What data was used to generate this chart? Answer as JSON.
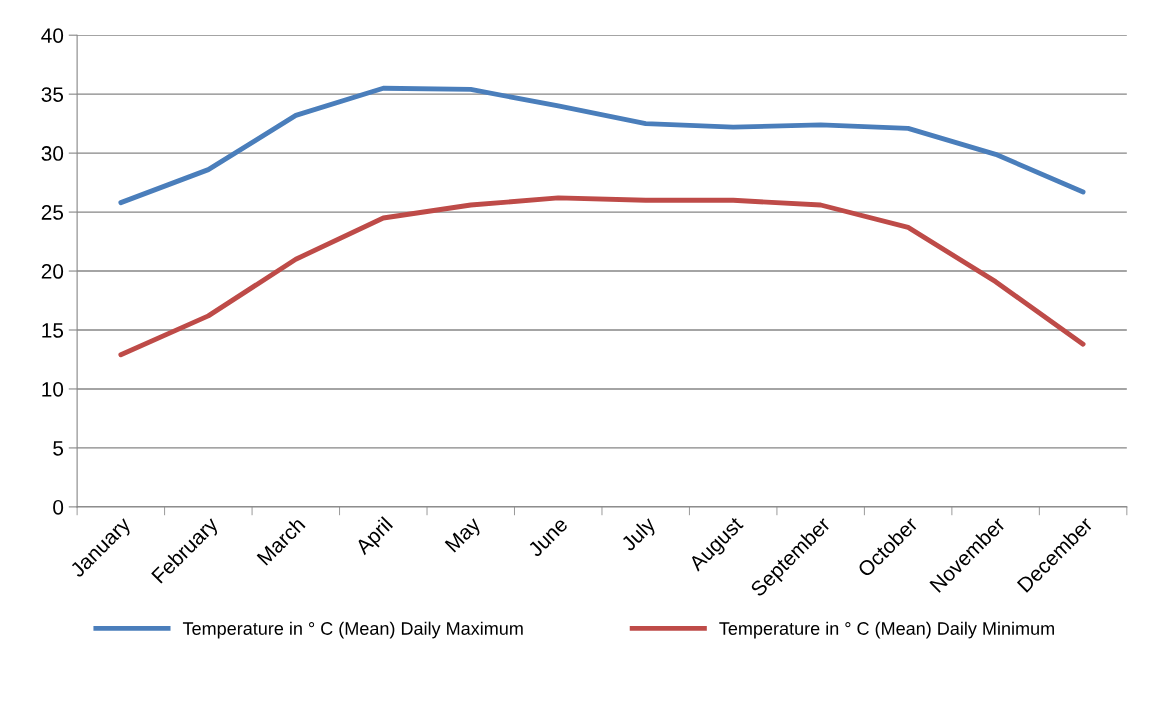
{
  "chart_data": {
    "type": "line",
    "categories": [
      "January",
      "February",
      "March",
      "April",
      "May",
      "June",
      "July",
      "August",
      "September",
      "October",
      "November",
      "December"
    ],
    "series": [
      {
        "name": "Temperature in ° C (Mean) Daily Maximum",
        "color": "#4a7ebb",
        "values": [
          25.8,
          28.6,
          33.2,
          35.5,
          35.4,
          34.0,
          32.5,
          32.2,
          32.4,
          32.1,
          29.9,
          26.7
        ]
      },
      {
        "name": "Temperature in ° C (Mean) Daily Minimum",
        "color": "#be4b48",
        "values": [
          12.9,
          16.2,
          21.0,
          24.5,
          25.6,
          26.2,
          26.0,
          26.0,
          25.6,
          23.7,
          19.1,
          13.8
        ]
      }
    ],
    "ylim": [
      0,
      40
    ],
    "yticks": [
      0,
      5,
      10,
      15,
      20,
      25,
      30,
      35,
      40
    ],
    "grid": "y",
    "legend": "bottom",
    "marker": "none",
    "line_style": "solid"
  }
}
